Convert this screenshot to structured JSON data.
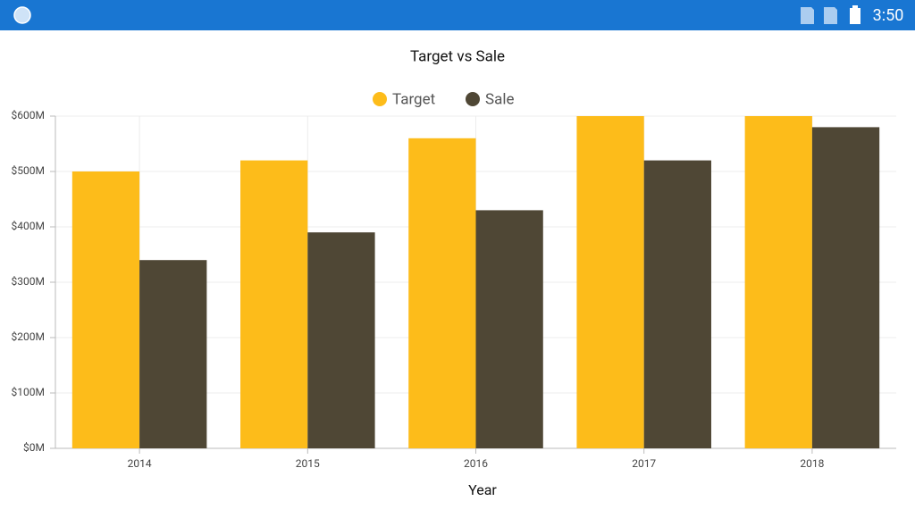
{
  "status_bar": {
    "time": "3:50"
  },
  "chart_data": {
    "type": "bar",
    "title": "Target vs Sale",
    "x_label": "Year",
    "categories": [
      "2014",
      "2015",
      "2016",
      "2017",
      "2018"
    ],
    "series": [
      {
        "name": "Target",
        "color": "#fdbc1a",
        "values": [
          500,
          520,
          560,
          600,
          600
        ]
      },
      {
        "name": "Sale",
        "color": "#4f4735",
        "values": [
          340,
          390,
          430,
          520,
          580
        ]
      }
    ],
    "ylim": [
      0,
      600
    ],
    "yticks": [
      {
        "value": 0,
        "label": "$0M"
      },
      {
        "value": 100,
        "label": "$100M"
      },
      {
        "value": 200,
        "label": "$200M"
      },
      {
        "value": 300,
        "label": "$300M"
      },
      {
        "value": 400,
        "label": "$400M"
      },
      {
        "value": 500,
        "label": "$500M"
      },
      {
        "value": 600,
        "label": "$600M"
      }
    ],
    "grid": true,
    "legend": "top"
  }
}
